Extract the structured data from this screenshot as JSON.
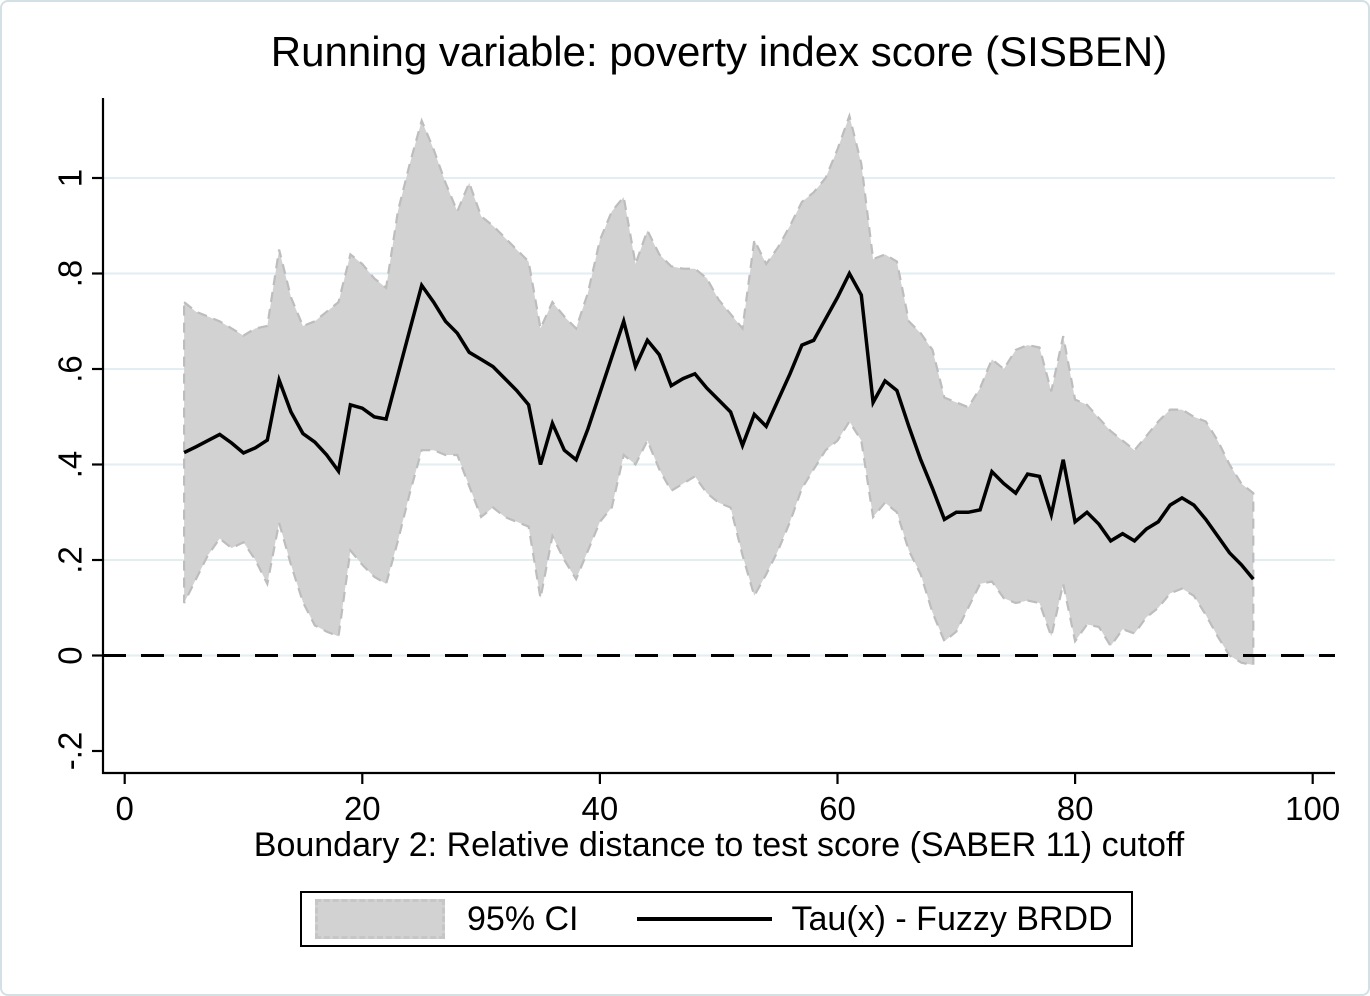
{
  "figure": {
    "title": "Running variable: poverty index score (SISBEN)",
    "x_axis": {
      "label": "Boundary 2: Relative distance to test score (SABER 11) cutoff",
      "ticks": [
        "0",
        "20",
        "40",
        "60",
        "80",
        "100"
      ],
      "tick_values": [
        0,
        20,
        40,
        60,
        80,
        100
      ],
      "range": [
        0,
        100
      ]
    },
    "y_axis": {
      "ticks": [
        "-.2",
        "0",
        ".2",
        ".4",
        ".6",
        ".8",
        "1"
      ],
      "tick_values": [
        -0.2,
        0,
        0.2,
        0.4,
        0.6,
        0.8,
        1
      ],
      "grid_values": [
        0,
        0.2,
        0.4,
        0.6,
        0.8,
        1
      ],
      "range": [
        -0.28,
        1.16
      ]
    },
    "legend": [
      {
        "swatch": "area",
        "label": "95% CI"
      },
      {
        "swatch": "line",
        "label": "Tau(x) - Fuzzy BRDD"
      }
    ]
  },
  "chart_data": {
    "type": "line",
    "title": "Running variable: poverty index score (SISBEN)",
    "xlabel": "Boundary 2: Relative distance to test score (SABER 11) cutoff",
    "ylabel": "",
    "xlim": [
      0,
      100
    ],
    "ylim": [
      -0.28,
      1.16
    ],
    "grid": true,
    "legend_position": "bottom-center",
    "zero_reference_line": 0,
    "x": [
      5,
      6,
      7,
      8,
      9,
      10,
      11,
      12,
      13,
      14,
      15,
      16,
      17,
      18,
      19,
      20,
      21,
      22,
      23,
      24,
      25,
      26,
      27,
      28,
      29,
      30,
      31,
      32,
      33,
      34,
      35,
      36,
      37,
      38,
      39,
      40,
      41,
      42,
      43,
      44,
      45,
      46,
      47,
      48,
      49,
      50,
      51,
      52,
      53,
      54,
      55,
      56,
      57,
      58,
      59,
      60,
      61,
      62,
      63,
      64,
      65,
      66,
      67,
      68,
      69,
      70,
      71,
      72,
      73,
      74,
      75,
      76,
      77,
      78,
      79,
      80,
      81,
      82,
      83,
      84,
      85,
      86,
      87,
      88,
      89,
      90,
      91,
      92,
      93,
      94,
      95
    ],
    "tau": [
      0.425,
      0.437,
      0.45,
      0.463,
      0.445,
      0.424,
      0.435,
      0.451,
      0.577,
      0.51,
      0.465,
      0.447,
      0.42,
      0.386,
      0.525,
      0.518,
      0.5,
      0.495,
      0.588,
      0.682,
      0.775,
      0.74,
      0.7,
      0.675,
      0.635,
      0.62,
      0.605,
      0.58,
      0.555,
      0.525,
      0.4,
      0.486,
      0.43,
      0.41,
      0.475,
      0.55,
      0.625,
      0.7,
      0.605,
      0.66,
      0.63,
      0.565,
      0.58,
      0.59,
      0.56,
      0.535,
      0.51,
      0.44,
      0.505,
      0.48,
      0.535,
      0.59,
      0.65,
      0.66,
      0.705,
      0.75,
      0.8,
      0.755,
      0.53,
      0.575,
      0.555,
      0.48,
      0.41,
      0.35,
      0.285,
      0.3,
      0.3,
      0.305,
      0.385,
      0.36,
      0.34,
      0.38,
      0.375,
      0.295,
      0.41,
      0.28,
      0.3,
      0.275,
      0.24,
      0.255,
      0.24,
      0.265,
      0.28,
      0.315,
      0.33,
      0.315,
      0.285,
      0.25,
      0.215,
      0.19,
      0.16
    ],
    "ci_upper": [
      0.74,
      0.72,
      0.71,
      0.7,
      0.685,
      0.67,
      0.685,
      0.69,
      0.85,
      0.75,
      0.69,
      0.7,
      0.72,
      0.74,
      0.84,
      0.82,
      0.79,
      0.77,
      0.93,
      1.03,
      1.12,
      1.06,
      0.99,
      0.93,
      0.99,
      0.92,
      0.9,
      0.875,
      0.85,
      0.825,
      0.685,
      0.74,
      0.71,
      0.685,
      0.76,
      0.87,
      0.93,
      0.96,
      0.82,
      0.89,
      0.84,
      0.815,
      0.81,
      0.81,
      0.79,
      0.745,
      0.715,
      0.685,
      0.87,
      0.82,
      0.855,
      0.9,
      0.95,
      0.97,
      1.0,
      1.06,
      1.13,
      1.03,
      0.83,
      0.84,
      0.825,
      0.7,
      0.675,
      0.64,
      0.54,
      0.53,
      0.52,
      0.56,
      0.62,
      0.6,
      0.64,
      0.65,
      0.645,
      0.553,
      0.669,
      0.536,
      0.525,
      0.497,
      0.47,
      0.45,
      0.43,
      0.46,
      0.49,
      0.515,
      0.515,
      0.5,
      0.49,
      0.45,
      0.4,
      0.36,
      0.34
    ],
    "ci_lower": [
      0.11,
      0.16,
      0.21,
      0.245,
      0.225,
      0.237,
      0.2,
      0.15,
      0.278,
      0.19,
      0.112,
      0.063,
      0.05,
      0.04,
      0.22,
      0.19,
      0.165,
      0.15,
      0.24,
      0.34,
      0.43,
      0.43,
      0.42,
      0.42,
      0.355,
      0.29,
      0.31,
      0.29,
      0.28,
      0.27,
      0.12,
      0.25,
      0.2,
      0.16,
      0.22,
      0.28,
      0.31,
      0.42,
      0.4,
      0.45,
      0.39,
      0.345,
      0.36,
      0.375,
      0.34,
      0.32,
      0.31,
      0.21,
      0.125,
      0.17,
      0.22,
      0.28,
      0.35,
      0.39,
      0.43,
      0.45,
      0.49,
      0.45,
      0.29,
      0.32,
      0.3,
      0.22,
      0.17,
      0.09,
      0.03,
      0.05,
      0.1,
      0.15,
      0.155,
      0.12,
      0.11,
      0.115,
      0.11,
      0.04,
      0.15,
      0.03,
      0.065,
      0.06,
      0.02,
      0.055,
      0.046,
      0.08,
      0.1,
      0.13,
      0.14,
      0.125,
      0.085,
      0.04,
      0.0,
      -0.015,
      -0.02
    ],
    "series": [
      {
        "name": "Tau(x) - Fuzzy BRDD",
        "style": "solid-line",
        "color": "#000000"
      },
      {
        "name": "95% CI",
        "style": "shaded-area",
        "color": "#d2d2d2"
      }
    ],
    "colors": {
      "line": "#000000",
      "ci_fill": "#d2d2d2",
      "ci_edge": "#bdbdbd",
      "grid": "#e2eef1",
      "axis": "#000000",
      "background": "#ffffff"
    }
  }
}
